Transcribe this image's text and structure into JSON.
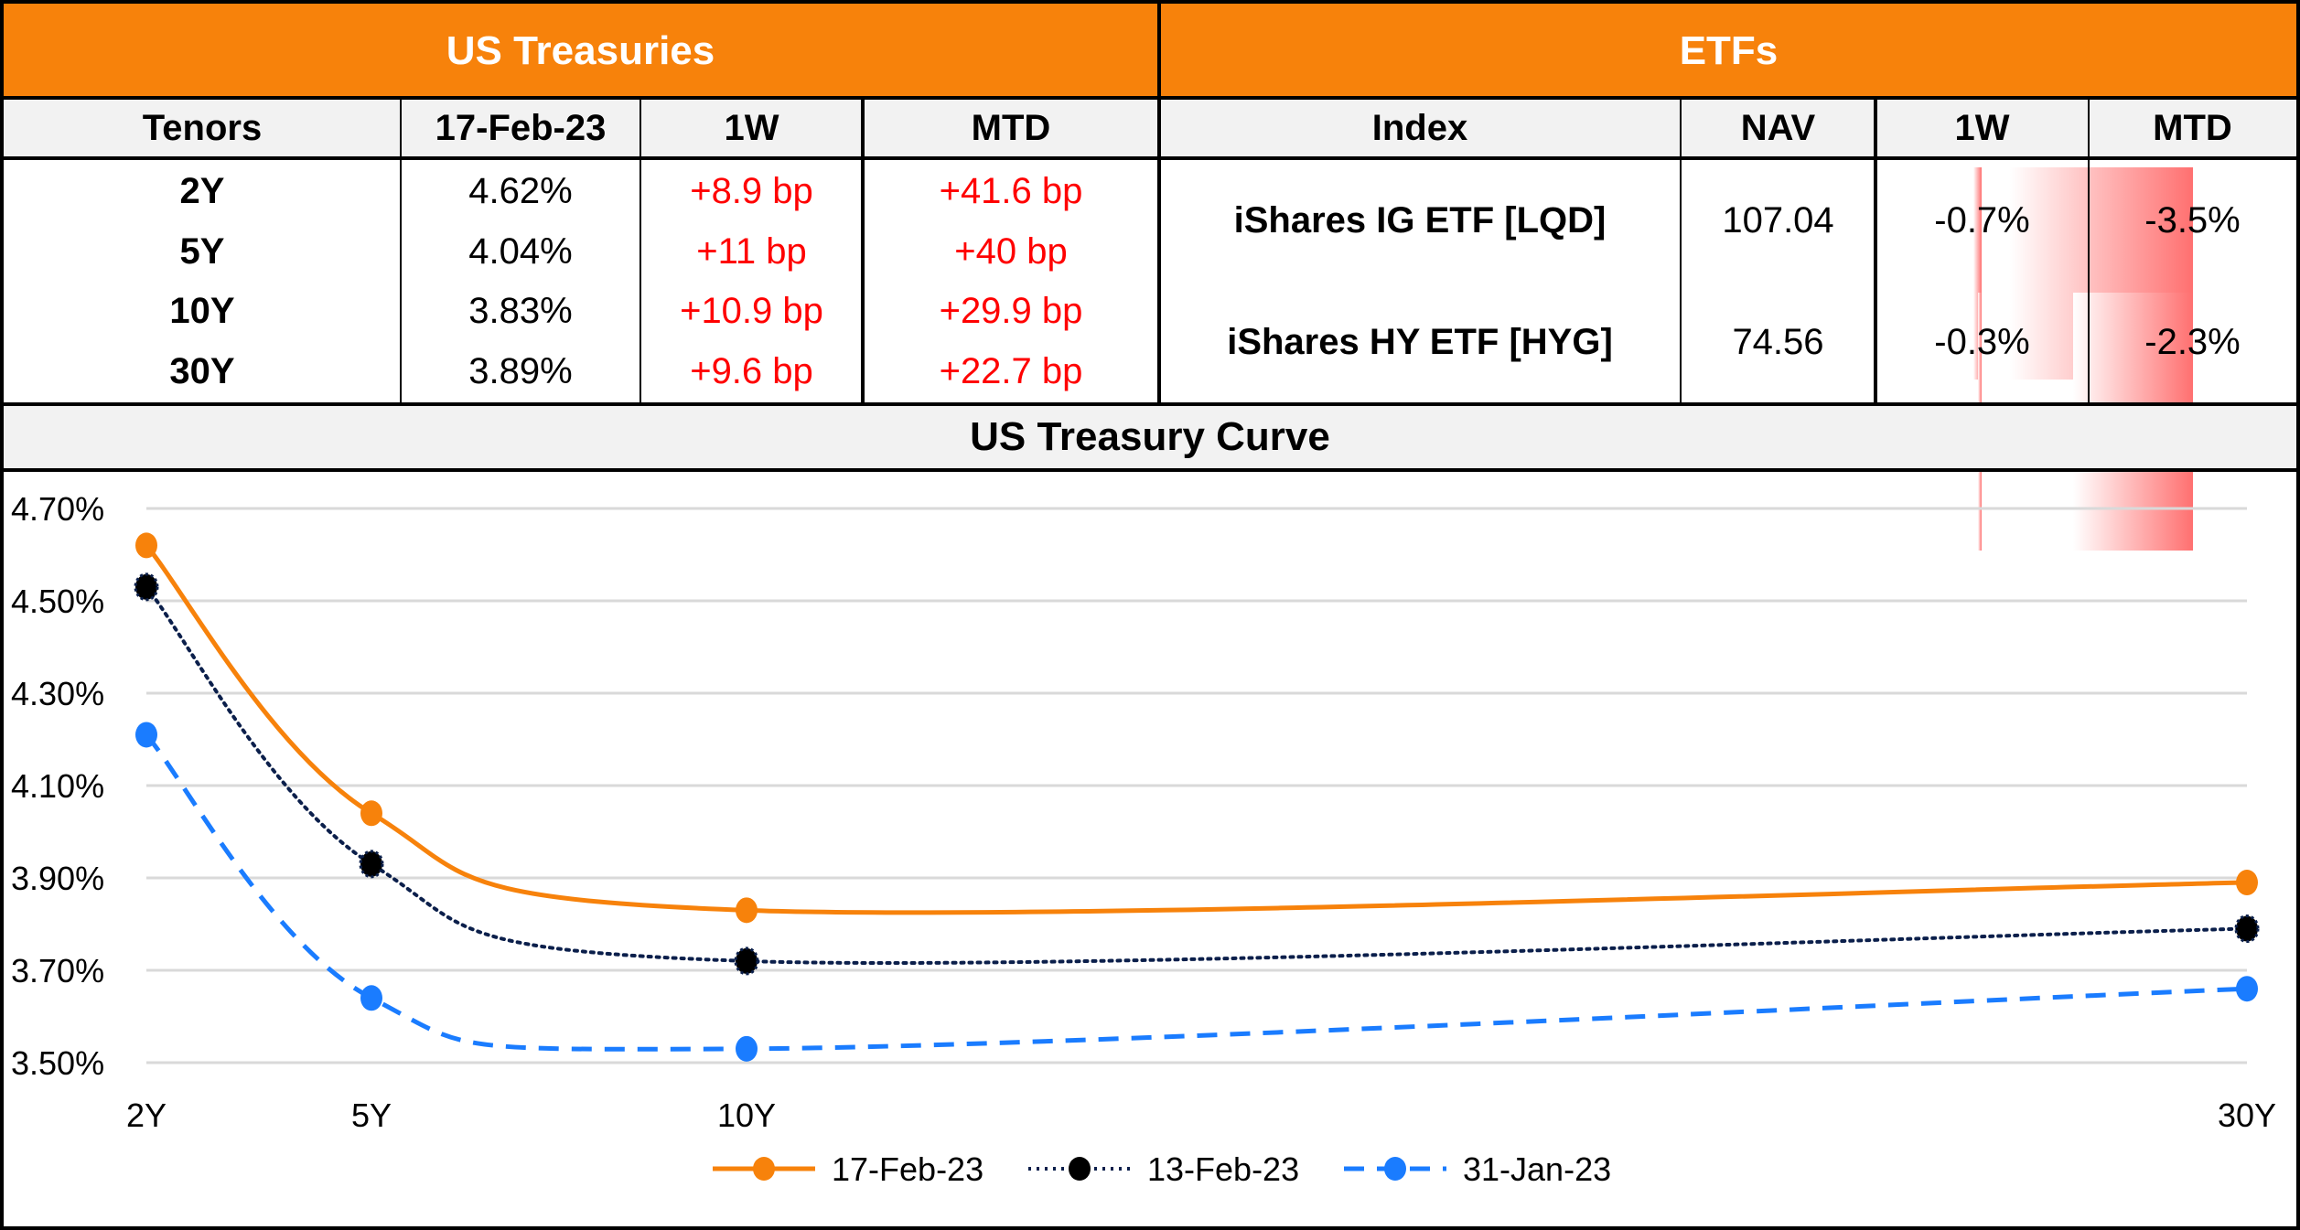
{
  "treasuries": {
    "title": "US Treasuries",
    "headers": [
      "Tenors",
      "17-Feb-23",
      "1W",
      "MTD"
    ],
    "rows": [
      {
        "tenor": "2Y",
        "yield": "4.62%",
        "w1": "+8.9 bp",
        "mtd": "+41.6 bp"
      },
      {
        "tenor": "5Y",
        "yield": "4.04%",
        "w1": "+11 bp",
        "mtd": "+40 bp"
      },
      {
        "tenor": "10Y",
        "yield": "3.83%",
        "w1": "+10.9 bp",
        "mtd": "+29.9 bp"
      },
      {
        "tenor": "30Y",
        "yield": "3.89%",
        "w1": "+9.6 bp",
        "mtd": "+22.7 bp"
      }
    ]
  },
  "etfs": {
    "title": "ETFs",
    "headers": [
      "Index",
      "NAV",
      "1W",
      "MTD"
    ],
    "rows": [
      {
        "index": "iShares IG ETF [LQD]",
        "nav": "107.04",
        "w1": "-0.7%",
        "mtd": "-3.5%",
        "w1_value": -0.7,
        "mtd_value": -3.5
      },
      {
        "index": "iShares HY ETF [HYG]",
        "nav": "74.56",
        "w1": "-0.3%",
        "mtd": "-2.3%",
        "w1_value": -0.3,
        "mtd_value": -2.3
      }
    ]
  },
  "colors": {
    "header_orange": "#f7820b",
    "header_gray": "#f2f2f2",
    "positive_change": "#ff0000",
    "bar_red": "#ff7070"
  },
  "chart_data": {
    "type": "line",
    "title": "US Treasury Curve",
    "xlabel": "",
    "ylabel": "",
    "x": [
      2,
      5,
      10,
      30
    ],
    "categories": [
      "2Y",
      "5Y",
      "10Y",
      "30Y"
    ],
    "ylim": [
      3.5,
      4.7
    ],
    "yticks": [
      "4.70%",
      "4.50%",
      "4.30%",
      "4.10%",
      "3.90%",
      "3.70%",
      "3.50%"
    ],
    "ytick_values": [
      4.7,
      4.5,
      4.3,
      4.1,
      3.9,
      3.7,
      3.5
    ],
    "grid": true,
    "smooth": true,
    "legend_position": "bottom",
    "series": [
      {
        "name": "17-Feb-23",
        "values": [
          4.62,
          4.04,
          3.83,
          3.89
        ],
        "color": "#f7820b",
        "style": "solid"
      },
      {
        "name": "13-Feb-23",
        "values": [
          4.53,
          3.93,
          3.72,
          3.79
        ],
        "color": "#0b1f4b",
        "style": "dotted"
      },
      {
        "name": "31-Jan-23",
        "values": [
          4.21,
          3.64,
          3.53,
          3.66
        ],
        "color": "#1a7cff",
        "style": "dashed"
      }
    ]
  }
}
